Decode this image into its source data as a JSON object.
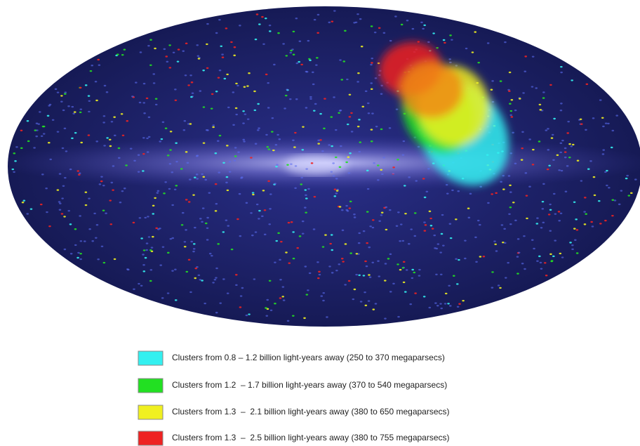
{
  "legend": [
    {
      "label": "Clusters from 0.8 – 1.2 billion light-years away (250 to 370 megaparsecs)",
      "color": "#33f0f0"
    },
    {
      "label": "Clusters from 1.2  – 1.7 billion light-years away (370 to 540 megaparsecs)",
      "color": "#22e022"
    },
    {
      "label": "Clusters from 1.3  –  2.1 billion light-years away (380 to 650 megaparsecs)",
      "color": "#f0f020"
    },
    {
      "label": "Clusters from 1.3  –  2.5 billion light-years away (380 to 755 megaparsecs)",
      "color": "#ee2222"
    }
  ]
}
